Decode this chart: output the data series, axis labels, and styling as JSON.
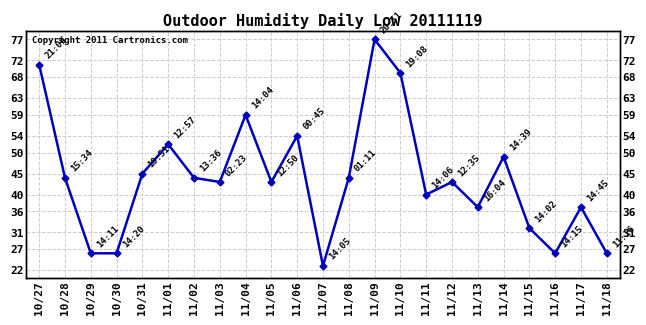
{
  "title": "Outdoor Humidity Daily Low 20111119",
  "copyright": "Copyright 2011 Cartronics.com",
  "x_labels": [
    "10/27",
    "10/28",
    "10/29",
    "10/30",
    "10/31",
    "11/01",
    "11/02",
    "11/03",
    "11/04",
    "11/05",
    "11/06",
    "11/07",
    "11/08",
    "11/09",
    "11/10",
    "11/11",
    "11/12",
    "11/13",
    "11/14",
    "11/15",
    "11/16",
    "11/17",
    "11/18"
  ],
  "y_values": [
    71,
    44,
    26,
    26,
    45,
    52,
    44,
    43,
    59,
    43,
    54,
    23,
    44,
    77,
    69,
    40,
    43,
    37,
    49,
    32,
    26,
    37,
    26
  ],
  "point_labels": [
    "21:09",
    "15:34",
    "14:11",
    "14:20",
    "10:51",
    "12:57",
    "13:36",
    "02:23",
    "14:04",
    "12:50",
    "00:45",
    "14:05",
    "01:11",
    "20:51",
    "19:08",
    "14:06",
    "12:35",
    "16:04",
    "14:39",
    "14:02",
    "14:15",
    "14:45",
    "11:16"
  ],
  "y_ticks": [
    22,
    27,
    31,
    36,
    40,
    45,
    50,
    54,
    59,
    63,
    68,
    72,
    77
  ],
  "ylim": [
    20,
    79
  ],
  "line_color": "#0000bb",
  "marker_color": "#0000bb",
  "bg_color": "#ffffff",
  "grid_color": "#cccccc",
  "title_fontsize": 11,
  "tick_fontsize": 8,
  "label_fontsize": 6.5
}
